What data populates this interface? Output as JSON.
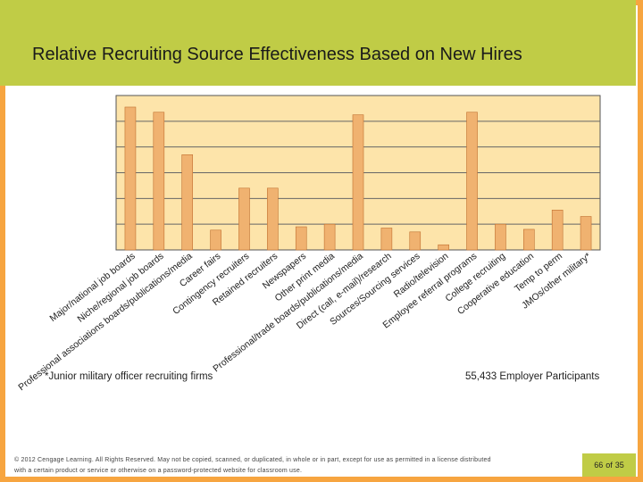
{
  "slide": {
    "title": "Relative Recruiting Source Effectiveness Based on New Hires",
    "footnote": "*Junior military officer recruiting firms",
    "participants": "55,433 Employer Participants",
    "copyright": "© 2012 Cengage Learning. All Rights Reserved. May not be copied, scanned, or duplicated, in whole or in part, except for use as permitted in a license distributed with a certain product or service or otherwise on a password-protected website for classroom use.",
    "page": {
      "current": "66",
      "of": "of",
      "total": "35"
    }
  },
  "colors": {
    "border": "#f7a540",
    "title_bar": "#c0cc46",
    "plot_bg": "#fde4aa",
    "bar": "#f0b270",
    "bar_edge": "#c07030"
  },
  "chart_data": {
    "type": "bar",
    "title": "",
    "xlabel": "",
    "ylabel": "",
    "ylim": [
      0,
      6
    ],
    "grid": true,
    "categories": [
      "Major/national job boards",
      "Niche/regional job boards",
      "Professional associations boards/publications/media",
      "Career fairs",
      "Contingency recruiters",
      "Retained recruiters",
      "Newspapers",
      "Other print media",
      "Professional/trade boards/publications/media",
      "Direct (call, e-mail)/research",
      "Sources/Sourcing services",
      "Radio/television",
      "Employee referral programs",
      "College recruiting",
      "Cooperative education",
      "Temp to perm",
      "JMOs/other military*"
    ],
    "values": [
      5.55,
      5.35,
      3.7,
      0.77,
      2.4,
      2.4,
      0.9,
      1.0,
      5.25,
      0.85,
      0.7,
      0.2,
      5.35,
      1.0,
      0.8,
      1.55,
      1.3
    ]
  }
}
